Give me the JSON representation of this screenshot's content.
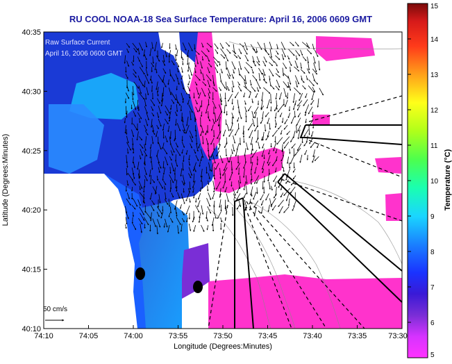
{
  "chart_data": {
    "type": "heatmap",
    "title": "RU COOL  NOAA-18  Sea Surface Temperature:  April 16, 2006 0609 GMT",
    "xlabel": "Longitude (Degrees:Minutes)",
    "ylabel": "Latitude (Degrees:Minutes)",
    "xlim_deg": [
      -74.1667,
      -73.5
    ],
    "ylim_deg": [
      40.1667,
      40.5833
    ],
    "x_ticks": [
      "74:10",
      "74:05",
      "74:00",
      "73:55",
      "73:50",
      "73:45",
      "73:40",
      "73:35",
      "73:30"
    ],
    "y_ticks": [
      "40:35",
      "40:30",
      "40:25",
      "40:20",
      "40:15",
      "40:10"
    ],
    "legend_lines": [
      "Raw Surface Current",
      "April 16, 2006 0600 GMT"
    ],
    "scale_label": "50 cm/s",
    "colorbar": {
      "label": "Temperature (°C)",
      "range": [
        5,
        15
      ],
      "ticks": [
        "15",
        "14",
        "13",
        "12",
        "11",
        "10",
        "9",
        "8",
        "7",
        "6",
        "5"
      ]
    }
  },
  "colors": {
    "title": "#1a1aa0",
    "legend_text": "#3333cc",
    "land": "#ffffff",
    "warm": "#ff33cc",
    "cold": "#1a3ad6",
    "frame": "#000000"
  }
}
